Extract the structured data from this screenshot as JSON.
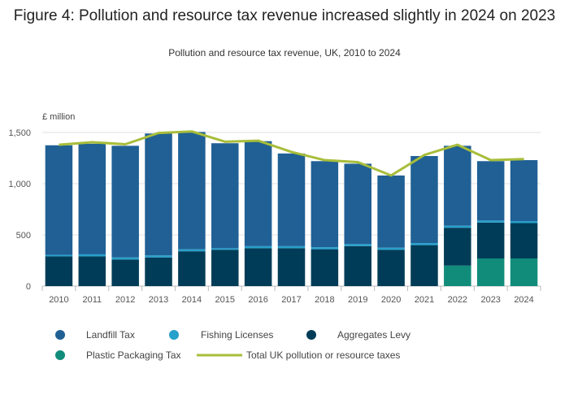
{
  "title": "Figure 4: Pollution and resource tax revenue increased slightly in 2024 on 2023",
  "subtitle": "Pollution and resource tax revenue, UK, 2010 to 2024",
  "chart_data": {
    "type": "bar",
    "stacked": true,
    "categories": [
      "2010",
      "2011",
      "2012",
      "2013",
      "2014",
      "2015",
      "2016",
      "2017",
      "2018",
      "2019",
      "2020",
      "2021",
      "2022",
      "2023",
      "2024"
    ],
    "ylabel": "£ million",
    "ylim": [
      0,
      1500
    ],
    "yticks": [
      0,
      500,
      1000,
      1500
    ],
    "ytick_labels": [
      "0",
      "500",
      "1,000",
      "1,500"
    ],
    "grid": true,
    "legend_position": "bottom",
    "series": [
      {
        "name": "Plastic Packaging Tax",
        "color": "#118c7b",
        "values": [
          0,
          0,
          0,
          0,
          0,
          0,
          0,
          0,
          0,
          0,
          0,
          0,
          200,
          270,
          270
        ]
      },
      {
        "name": "Aggregates Levy",
        "color": "#003c57",
        "values": [
          290,
          290,
          260,
          280,
          340,
          355,
          370,
          370,
          360,
          390,
          355,
          400,
          370,
          350,
          345
        ]
      },
      {
        "name": "Fishing Licenses",
        "color": "#27a0cc",
        "values": [
          15,
          20,
          20,
          20,
          20,
          15,
          20,
          20,
          20,
          20,
          20,
          20,
          20,
          20,
          20
        ]
      },
      {
        "name": "Landfill Tax",
        "color": "#206095",
        "values": [
          1070,
          1080,
          1090,
          1190,
          1145,
          1025,
          1025,
          905,
          840,
          785,
          705,
          850,
          780,
          580,
          595
        ]
      }
    ],
    "line": {
      "name": "Total UK pollution or resource taxes",
      "color": "#a8bd3a",
      "values": [
        1380,
        1405,
        1385,
        1495,
        1510,
        1410,
        1420,
        1310,
        1230,
        1210,
        1080,
        1280,
        1380,
        1230,
        1240
      ]
    }
  }
}
